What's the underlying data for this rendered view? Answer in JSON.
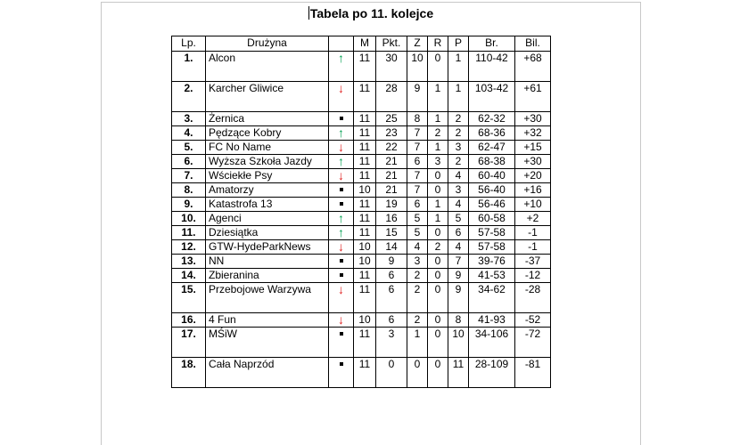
{
  "title": "Tabela po 11. kolejce",
  "headers": [
    "Lp.",
    "Drużyna",
    "",
    "M",
    "Pkt.",
    "Z",
    "R",
    "P",
    "Br.",
    "Bil."
  ],
  "rows": [
    {
      "lp": "1.",
      "team": "Alcon",
      "trend": "up",
      "m": "11",
      "pkt": "30",
      "z": "10",
      "r": "0",
      "p": "1",
      "br": "110-42",
      "bil": "+68",
      "tall": true
    },
    {
      "lp": "2.",
      "team": "Karcher Gliwice",
      "trend": "down",
      "m": "11",
      "pkt": "28",
      "z": "9",
      "r": "1",
      "p": "1",
      "br": "103-42",
      "bil": "+61",
      "tall": true
    },
    {
      "lp": "3.",
      "team": "Żernica",
      "trend": "same",
      "m": "11",
      "pkt": "25",
      "z": "8",
      "r": "1",
      "p": "2",
      "br": "62-32",
      "bil": "+30"
    },
    {
      "lp": "4.",
      "team": "Pędzące Kobry",
      "trend": "up",
      "m": "11",
      "pkt": "23",
      "z": "7",
      "r": "2",
      "p": "2",
      "br": "68-36",
      "bil": "+32"
    },
    {
      "lp": "5.",
      "team": "FC No Name",
      "trend": "down",
      "m": "11",
      "pkt": "22",
      "z": "7",
      "r": "1",
      "p": "3",
      "br": "62-47",
      "bil": "+15"
    },
    {
      "lp": "6.",
      "team": "Wyższa Szkoła Jazdy",
      "trend": "up",
      "m": "11",
      "pkt": "21",
      "z": "6",
      "r": "3",
      "p": "2",
      "br": "68-38",
      "bil": "+30"
    },
    {
      "lp": "7.",
      "team": "Wściekłe Psy",
      "trend": "down",
      "m": "11",
      "pkt": "21",
      "z": "7",
      "r": "0",
      "p": "4",
      "br": "60-40",
      "bil": "+20"
    },
    {
      "lp": "8.",
      "team": "Amatorzy",
      "trend": "same",
      "m": "10",
      "pkt": "21",
      "z": "7",
      "r": "0",
      "p": "3",
      "br": "56-40",
      "bil": "+16"
    },
    {
      "lp": "9.",
      "team": "Katastrofa 13",
      "trend": "same",
      "m": "11",
      "pkt": "19",
      "z": "6",
      "r": "1",
      "p": "4",
      "br": "56-46",
      "bil": "+10"
    },
    {
      "lp": "10.",
      "team": "Agenci",
      "trend": "up",
      "m": "11",
      "pkt": "16",
      "z": "5",
      "r": "1",
      "p": "5",
      "br": "60-58",
      "bil": "+2"
    },
    {
      "lp": "11.",
      "team": "Dziesiątka",
      "trend": "up",
      "m": "11",
      "pkt": "15",
      "z": "5",
      "r": "0",
      "p": "6",
      "br": "57-58",
      "bil": "-1"
    },
    {
      "lp": "12.",
      "team": "GTW-HydeParkNews",
      "trend": "down",
      "m": "10",
      "pkt": "14",
      "z": "4",
      "r": "2",
      "p": "4",
      "br": "57-58",
      "bil": "-1"
    },
    {
      "lp": "13.",
      "team": "NN",
      "trend": "same",
      "m": "10",
      "pkt": "9",
      "z": "3",
      "r": "0",
      "p": "7",
      "br": "39-76",
      "bil": "-37"
    },
    {
      "lp": "14.",
      "team": "Zbieranina",
      "trend": "same",
      "m": "11",
      "pkt": "6",
      "z": "2",
      "r": "0",
      "p": "9",
      "br": "41-53",
      "bil": "-12"
    },
    {
      "lp": "15.",
      "team": "Przebojowe Warzywa",
      "trend": "down",
      "m": "11",
      "pkt": "6",
      "z": "2",
      "r": "0",
      "p": "9",
      "br": "34-62",
      "bil": "-28",
      "tall": true
    },
    {
      "lp": "16.",
      "team": "4 Fun",
      "trend": "down",
      "m": "10",
      "pkt": "6",
      "z": "2",
      "r": "0",
      "p": "8",
      "br": "41-93",
      "bil": "-52"
    },
    {
      "lp": "17.",
      "team": "MŚiW",
      "trend": "same",
      "m": "11",
      "pkt": "3",
      "z": "1",
      "r": "0",
      "p": "10",
      "br": "34-106",
      "bil": "-72",
      "tall": true
    },
    {
      "lp": "18.",
      "team": "Cała Naprzód",
      "trend": "same",
      "m": "11",
      "pkt": "0",
      "z": "0",
      "r": "0",
      "p": "11",
      "br": "28-109",
      "bil": "-81",
      "tall": true
    }
  ],
  "icons": {
    "up": "arrow-up-icon",
    "down": "arrow-down-icon",
    "same": "square-dot-icon"
  },
  "colors": {
    "up": "#00a050",
    "down": "#e02020"
  }
}
